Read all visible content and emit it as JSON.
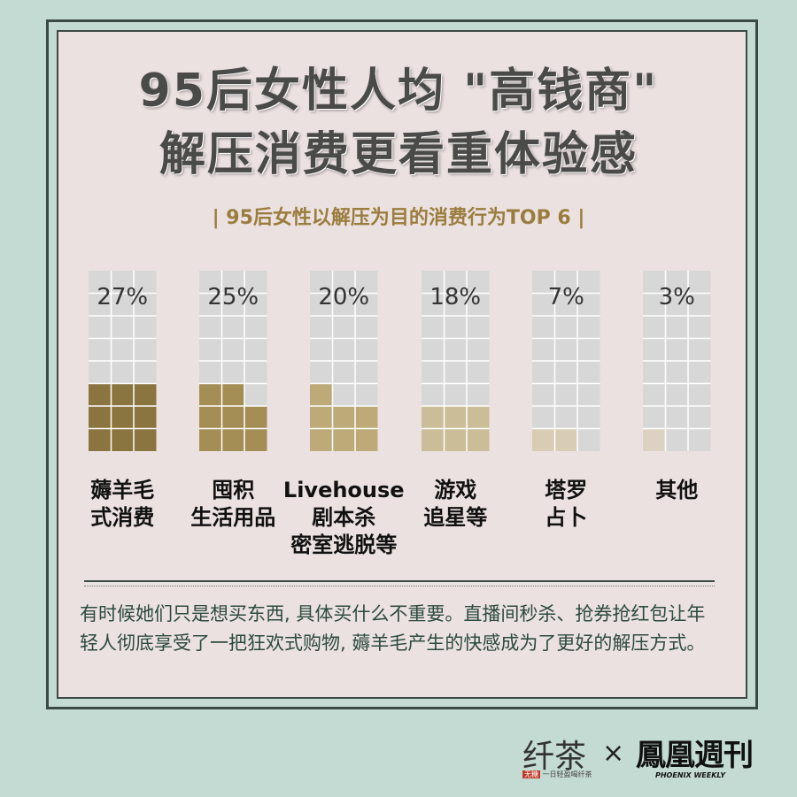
{
  "title_line1": "95后女性人均 \"高钱商\"",
  "title_line2": "解压消费更看重体验感",
  "chart_data": {
    "type": "bar",
    "title": "| 95后女性以解压为目的消费行为TOP 6 |",
    "categories": [
      [
        "薅羊毛",
        "式消费"
      ],
      [
        "囤积",
        "生活用品"
      ],
      [
        "Livehouse",
        "剧本杀",
        "密室逃脱等"
      ],
      [
        "游戏",
        "追星等"
      ],
      [
        "塔罗",
        "占卜"
      ],
      [
        "其他"
      ]
    ],
    "values": [
      27,
      25,
      20,
      18,
      7,
      3
    ],
    "value_labels": [
      "27%",
      "25%",
      "20%",
      "18%",
      "7%",
      "3%"
    ],
    "colors": [
      "#8a7440",
      "#a48e55",
      "#bdaa78",
      "#cbbd97",
      "#d8ccb4",
      "#ddd2c2"
    ],
    "empty_color": "#d7d7d7",
    "ylim": [
      0,
      100
    ]
  },
  "body_text": "有时候她们只是想买东西, 具体买什么不重要。直播间秒杀、抢券抢红包让年轻人彻底享受了一把狂欢式购物, 薅羊毛产生的快感成为了更好的解压方式。",
  "footer": {
    "brand_a": "纤茶",
    "brand_a_tag_red": "无糖",
    "brand_a_tag": "一日轻盈喝纤茶",
    "times": "×",
    "brand_b": "鳳凰週刊",
    "brand_b_sub": "PHOENIX WEEKLY"
  }
}
